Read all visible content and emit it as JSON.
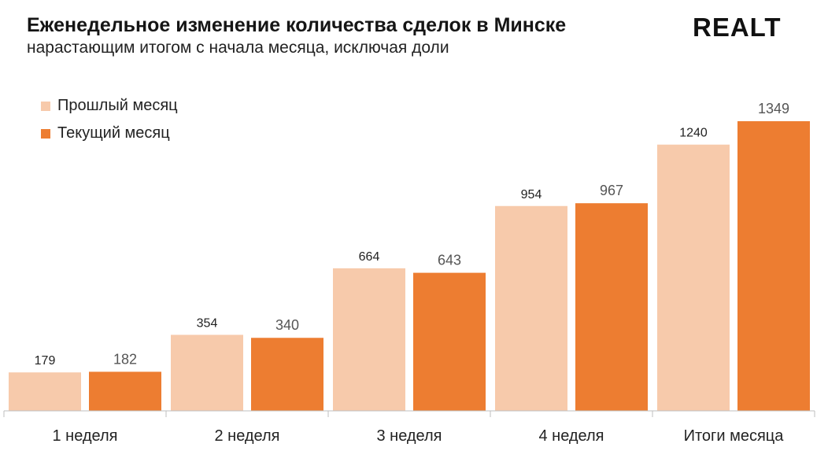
{
  "header": {
    "title": "Еженедельное изменение количества сделок в Минске",
    "subtitle": "нарастающим итогом с начала месяца, исключая доли",
    "logo": "REALT"
  },
  "colors": {
    "previous": "#f7caab",
    "current": "#ed7d31",
    "axis": "#bfbfbf"
  },
  "chart_data": {
    "type": "bar",
    "title": "Еженедельное изменение количества сделок в Минске",
    "subtitle": "нарастающим итогом с начала месяца, исключая доли",
    "categories": [
      "1 неделя",
      "2 неделя",
      "3 неделя",
      "4 неделя",
      "Итоги месяца"
    ],
    "series": [
      {
        "name": "Прошлый месяц",
        "values": [
          179,
          354,
          664,
          954,
          1240
        ]
      },
      {
        "name": "Текущий месяц",
        "values": [
          182,
          340,
          643,
          967,
          1349
        ]
      }
    ],
    "ylim": [
      0,
      1400
    ],
    "legend_position": "top-left",
    "grid": false
  }
}
